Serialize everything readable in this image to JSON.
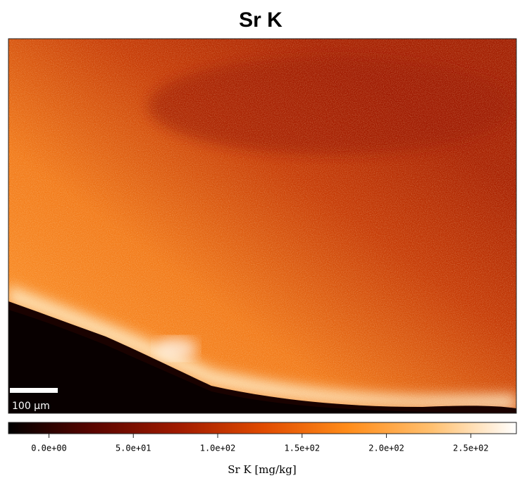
{
  "chart_data": {
    "type": "heatmap",
    "title": "Sr K",
    "colorbar_label": "Sr K  [mg/kg]",
    "scale_bar_label": "100 μm",
    "clim": [
      -24,
      277
    ],
    "colorbar_ticks": [
      {
        "value": 0,
        "label": "0.0e+00"
      },
      {
        "value": 50,
        "label": "5.0e+01"
      },
      {
        "value": 100,
        "label": "1.0e+02"
      },
      {
        "value": 150,
        "label": "1.5e+02"
      },
      {
        "value": 200,
        "label": "2.0e+02"
      },
      {
        "value": 250,
        "label": "2.5e+02"
      }
    ],
    "colormap": [
      "#000000",
      "#5a0500",
      "#a01a00",
      "#e04a00",
      "#ff8c1a",
      "#ffc070",
      "#ffffff"
    ]
  }
}
